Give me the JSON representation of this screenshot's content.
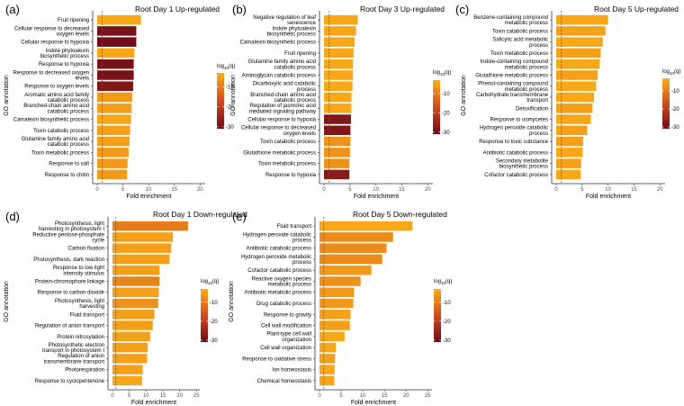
{
  "figure": {
    "x_axis_title": "Fold enrichment",
    "y_axis_title": "GO annotation",
    "legend_title_prefix": "log",
    "legend_title_sub": "10",
    "legend_title_suffix": "(q)",
    "legend_ticks": [
      "-10",
      "-20",
      "-30"
    ],
    "legend_values": [
      -10,
      -20,
      -30
    ],
    "color_low": "#fbae17",
    "color_high": "#6b0916",
    "reference_line": 1
  },
  "chart_data": [
    {
      "type": "bar",
      "panel": "(a)",
      "title": "Root Day 1 Up-regulated",
      "xlim": [
        0,
        21
      ],
      "xticks": [
        0,
        5,
        10,
        15,
        20
      ],
      "categories": [
        "Fruit ripening",
        "Cellular response to decreased\noxygen levels",
        "Cellular response to hypoxia",
        "Indole phytoalexin\nbiosynthetic process",
        "Response to hypoxia",
        "Response to decreased oxygen\nlevels",
        "Response to oxygen levels",
        "Aromatic amino acid family\ncatabolic process",
        "Branched-chain amino acid\ncatabolic process",
        "Camalexin biosynthetic process",
        "Toxin catabolic process",
        "Glutamine family amino acid\ncatabolic process",
        "Toxin metabolic process",
        "Response to salt",
        "Response to chitin"
      ],
      "values": [
        8.5,
        7.6,
        7.6,
        7.2,
        7.1,
        7.1,
        7.0,
        6.8,
        6.7,
        6.6,
        6.4,
        6.3,
        6.1,
        5.9,
        5.8
      ],
      "log10q": [
        -4,
        -29,
        -30,
        -4,
        -29,
        -29,
        -28,
        -6,
        -5,
        -4,
        -5,
        -5,
        -6,
        -6,
        -6
      ]
    },
    {
      "type": "bar",
      "panel": "(b)",
      "title": "Root Day 3 Up-regulated",
      "xlim": [
        0,
        21
      ],
      "xticks": [
        0,
        5,
        10,
        15,
        20
      ],
      "categories": [
        "Negative regulation of leaf\nsenescence",
        "Indole phytoalexin\nbiosynthetic process",
        "Camalexin biosynthetic process",
        "Fruit ripening",
        "Glutamine family amino acid\ncatabolic process",
        "Aminoglycan catabolic process",
        "Dicarboxylic acid catabolic\nprocess",
        "Branched-chain amino acid\ncatabolic process",
        "Regulation of jasmonic acid\nmediated signaling pathway",
        "Cellular response to hypoxia",
        "Cellular response to decreased\noxygen levels",
        "Toxin catabolic process",
        "Glutathione metabolic process",
        "Toxin metabolic process",
        "Response to hypoxia"
      ],
      "values": [
        6.5,
        6.2,
        5.9,
        5.7,
        5.6,
        5.6,
        5.5,
        5.3,
        5.3,
        5.2,
        5.1,
        5.1,
        5.0,
        4.9,
        4.9
      ],
      "log10q": [
        -4,
        -4,
        -4,
        -4,
        -4,
        -4,
        -4,
        -4,
        -4,
        -28,
        -28,
        -7,
        -7,
        -7,
        -27
      ]
    },
    {
      "type": "bar",
      "panel": "(c)",
      "title": "Root Day 5 Up-regulated",
      "xlim": [
        0,
        21
      ],
      "xticks": [
        0,
        5,
        10,
        15,
        20
      ],
      "categories": [
        "Benzene-containing compound\nmetabolic process",
        "Toxin catabolic process",
        "Salicylic acid metabolic\nprocess",
        "Toxin metabolic process",
        "Indole-containing compound\nmetabolic process",
        "Glutathione metabolic process",
        "Phenol-containing compound\nmetabolic process",
        "Carbohydrate transmembrane\ntransport",
        "Detoxification",
        "Response to oomycetes",
        "Hydrogen peroxide catabolic\nprocess",
        "Response to toxic substance",
        "Antibiotic catabolic process",
        "Secondary metabolite\nbiosynthetic process",
        "Cofactor catabolic process"
      ],
      "values": [
        10.0,
        9.5,
        9.0,
        8.6,
        8.4,
        8.0,
        7.7,
        7.3,
        7.0,
        6.7,
        6.0,
        5.2,
        5.1,
        4.8,
        4.7
      ],
      "log10q": [
        -4,
        -5,
        -4,
        -5,
        -4,
        -5,
        -4,
        -4,
        -5,
        -4,
        -5,
        -5,
        -4,
        -5,
        -4
      ]
    },
    {
      "type": "bar",
      "panel": "(d)",
      "title": "Root Day 1 Down-regulated",
      "xlim": [
        0,
        26
      ],
      "xticks": [
        0,
        5,
        10,
        15,
        20,
        25
      ],
      "categories": [
        "Photosynthesis, light\nharvesting in photosystem I",
        "Reductive pentose-phosphate\ncycle",
        "Carbon fixation",
        "Photosynthesis, dark reaction",
        "Response to low light\nintensity stimulus",
        "Protein-chromophore linkage",
        "Response to carbon dioxide",
        "Photosynthesis, light\nharvesting",
        "Fluid transport",
        "Regulation of anion transport",
        "Protein nitrosylation",
        "Photosynthetic electron\ntransport in photosystem I",
        "Regulation of anion\ntransmembrane transport",
        "Photorespiration",
        "Response to cyclopentenone"
      ],
      "values": [
        22.5,
        18.0,
        17.5,
        17.0,
        14.0,
        14.0,
        13.8,
        13.6,
        12.5,
        12.0,
        11.2,
        10.5,
        10.3,
        9.0,
        8.8
      ],
      "log10q": [
        -10,
        -5,
        -5,
        -5,
        -5,
        -9,
        -5,
        -7,
        -5,
        -5,
        -5,
        -5,
        -5,
        -5,
        -4
      ]
    },
    {
      "type": "bar",
      "panel": "(e)",
      "title": "Root Day 5 Down-regulated",
      "xlim": [
        0,
        26
      ],
      "xticks": [
        0,
        5,
        10,
        15,
        20,
        25
      ],
      "categories": [
        "Fluid transport",
        "Hydrogen peroxide catabolic\nprocess",
        "Antibiotic catabolic process",
        "Hydrogen peroxide metabolic\nprocess",
        "Cofactor catabolic process",
        "Reactive oxygen species\nmetabolic process",
        "Antibiotic metabolic process",
        "Drug catabolic process",
        "Response to gravity",
        "Cell wall modification",
        "Plant-type cell wall\norganization",
        "Cell wall organization",
        "Response to oxidative stress",
        "Ion homeostasis",
        "Chemical homeostasis"
      ],
      "values": [
        21.5,
        17.0,
        15.5,
        14.5,
        12.0,
        9.5,
        8.0,
        7.8,
        7.2,
        7.0,
        5.8,
        3.8,
        3.6,
        3.5,
        3.4
      ],
      "log10q": [
        -4,
        -8,
        -8,
        -8,
        -6,
        -7,
        -6,
        -6,
        -5,
        -5,
        -4,
        -4,
        -5,
        -4,
        -4
      ]
    }
  ]
}
